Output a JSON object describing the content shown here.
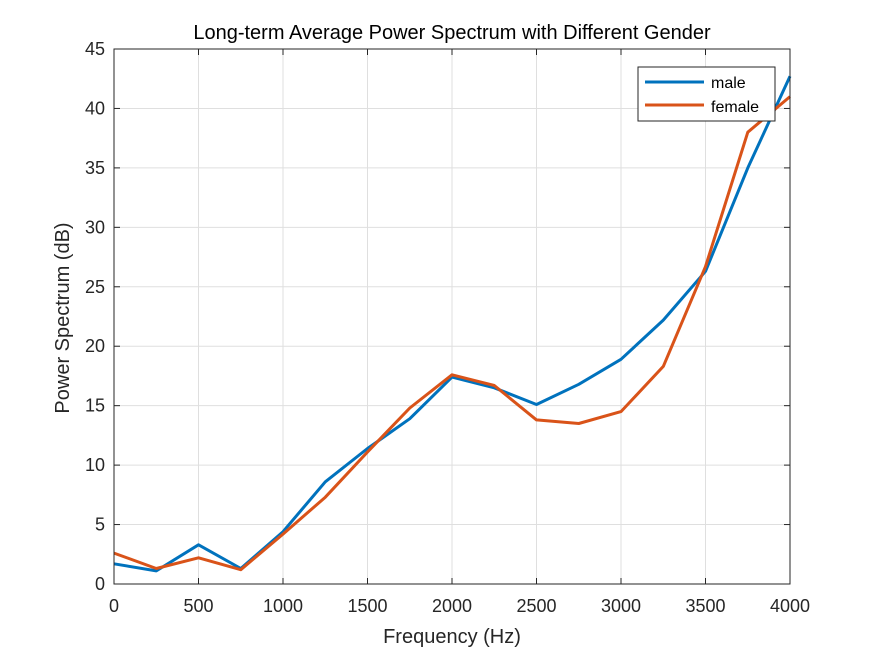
{
  "chart_data": {
    "type": "line",
    "title": "Long-term Average Power Spectrum with Different Gender",
    "xlabel": "Frequency (Hz)",
    "ylabel": "Power Spectrum (dB)",
    "xlim": [
      0,
      4000
    ],
    "ylim": [
      0,
      45
    ],
    "xticks": [
      "0",
      "500",
      "1000",
      "1500",
      "2000",
      "2500",
      "3000",
      "3500",
      "4000"
    ],
    "yticks": [
      "0",
      "5",
      "10",
      "15",
      "20",
      "25",
      "30",
      "35",
      "40",
      "45"
    ],
    "grid": true,
    "legend_position": "top-right",
    "x": [
      0,
      250,
      500,
      750,
      1000,
      1250,
      1500,
      1750,
      2000,
      2250,
      2500,
      2750,
      3000,
      3250,
      3500,
      3750,
      4000
    ],
    "series": [
      {
        "name": "male",
        "color": "#0072BD",
        "values": [
          1.7,
          1.1,
          3.3,
          1.3,
          4.4,
          8.6,
          11.4,
          13.9,
          17.4,
          16.5,
          15.1,
          16.8,
          18.9,
          22.2,
          26.3,
          35.0,
          42.7
        ]
      },
      {
        "name": "female",
        "color": "#D95319",
        "values": [
          2.6,
          1.3,
          2.2,
          1.2,
          4.2,
          7.3,
          11.1,
          14.8,
          17.6,
          16.7,
          13.8,
          13.5,
          14.5,
          18.3,
          26.7,
          38.0,
          41.0
        ]
      }
    ]
  }
}
